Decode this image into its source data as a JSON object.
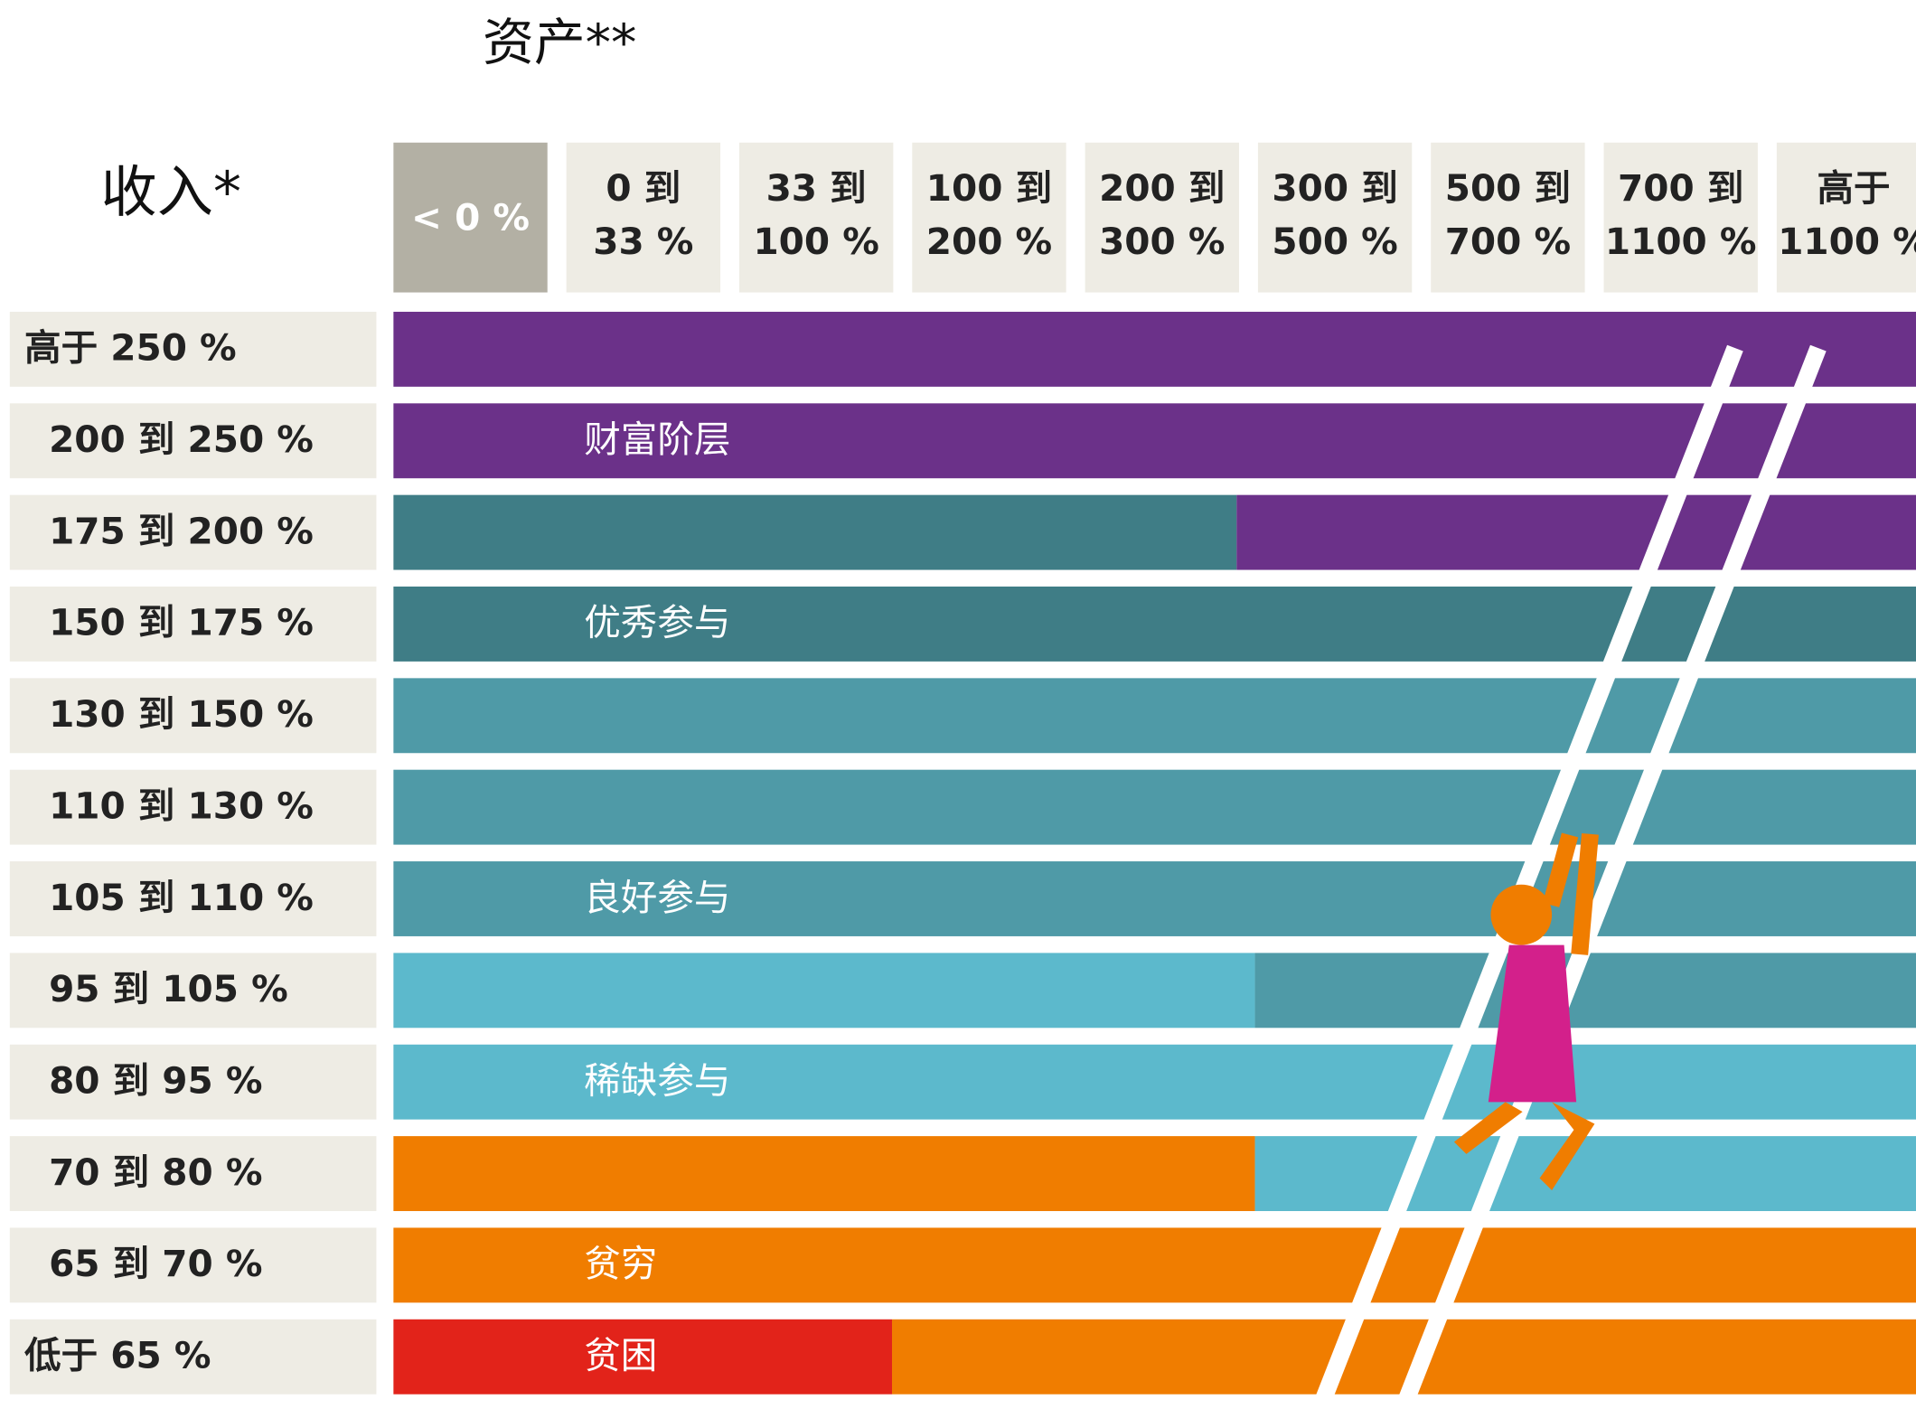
{
  "header": {
    "assets_title": "资产**",
    "income_title": "收入*"
  },
  "columns": [
    [
      "< 0 %"
    ],
    [
      "0 到",
      "33 %"
    ],
    [
      "33 到",
      "100 %"
    ],
    [
      "100 到",
      "200 %"
    ],
    [
      "200 到",
      "300 %"
    ],
    [
      "300 到",
      "500 %"
    ],
    [
      "500 到",
      "700 %"
    ],
    [
      "700 到",
      "1100 %"
    ],
    [
      "高于",
      "1100 %"
    ]
  ],
  "rows": [
    "高于 250 %",
    "200 到 250 %",
    "175 到 200 %",
    "150 到 175 %",
    "130 到 150 %",
    "110 到 130 %",
    "105 到 110 %",
    "95 到 105 %",
    "80 到 95 %",
    "70 到 80 %",
    "65 到 70 %",
    "低于 65 %"
  ],
  "bands": {
    "wealthy": "财富阶层",
    "excellent": "优秀参与",
    "good": "良好参与",
    "scarce": "稀缺参与",
    "poor": "贫穷",
    "poverty": "贫困"
  }
}
